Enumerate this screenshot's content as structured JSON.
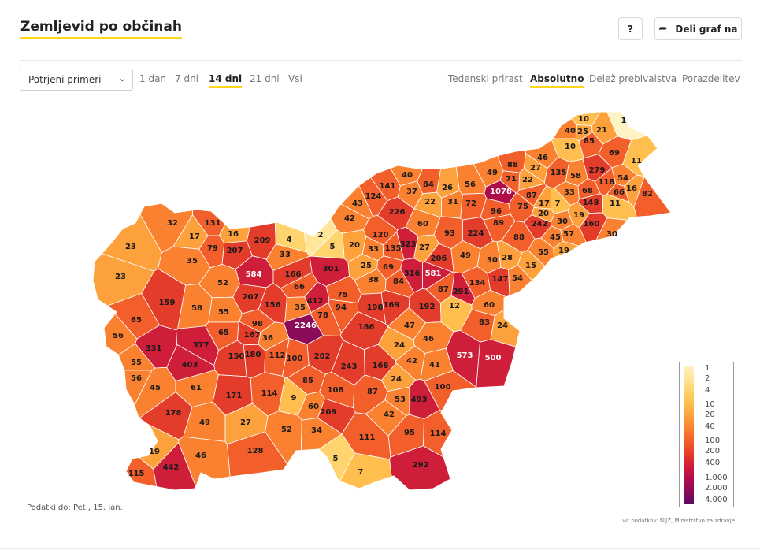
{
  "header": {
    "title": "Zemljevid po občinah",
    "help_label": "?",
    "share_label": "Deli graf na"
  },
  "controls": {
    "metric_select": "Potrjeni primeri",
    "period_tabs": [
      "1 dan",
      "7 dni",
      "14 dni",
      "21 dni",
      "Vsi"
    ],
    "period_active": "14 dni",
    "mode_tabs": [
      "Tedenski prirast",
      "Absolutno",
      "Delež prebivalstva",
      "Porazdelitev"
    ],
    "mode_active": "Absolutno"
  },
  "legend": {
    "labels": [
      "1",
      "2",
      "4",
      "10",
      "20",
      "40",
      "100",
      "200",
      "400",
      "1.000",
      "2.000",
      "4.000"
    ],
    "colors": [
      "#fff3c4",
      "#ffe69a",
      "#ffd36e",
      "#ffbe4d",
      "#fda13c",
      "#f9812f",
      "#f25f2a",
      "#e43c2b",
      "#cf1e3a",
      "#b10c4a",
      "#8c0a5a",
      "#5c0a66"
    ]
  },
  "footer": {
    "updated": "Podatki do: Pet., 15. jan.",
    "source": "vir podatkov: NIJZ, Ministrstvo za zdravje"
  },
  "map": {
    "values": [
      10,
      1,
      40,
      25,
      21,
      10,
      85,
      69,
      11,
      49,
      88,
      46,
      27,
      135,
      58,
      279,
      54,
      16,
      118,
      66,
      82,
      71,
      22,
      1078,
      87,
      33,
      68,
      17,
      7,
      148,
      11,
      40,
      84,
      37,
      141,
      26,
      56,
      124,
      43,
      22,
      31,
      72,
      96,
      75,
      20,
      19,
      226,
      42,
      60,
      93,
      224,
      89,
      242,
      30,
      160,
      30,
      131,
      32,
      16,
      17,
      209,
      4,
      2,
      120,
      323,
      27,
      88,
      45,
      57,
      23,
      79,
      207,
      33,
      5,
      20,
      33,
      135,
      206,
      49,
      30,
      28,
      55,
      19,
      35,
      584,
      166,
      301,
      25,
      69,
      316,
      581,
      15,
      54,
      147,
      23,
      52,
      66,
      38,
      84,
      87,
      134,
      159,
      207,
      156,
      412,
      75,
      198,
      169,
      192,
      291,
      12,
      60,
      58,
      55,
      35,
      94,
      78,
      83,
      24,
      65,
      56,
      98,
      2246,
      186,
      47,
      65,
      167,
      36,
      46,
      331,
      377,
      150,
      180,
      112,
      100,
      202,
      24,
      573,
      500,
      55,
      403,
      243,
      168,
      42,
      41,
      56,
      45,
      61,
      85,
      24,
      100,
      114,
      9,
      108,
      87,
      171,
      60,
      53,
      493,
      178,
      209,
      42,
      49,
      27,
      52,
      34,
      111,
      95,
      114,
      128,
      46,
      19,
      442,
      115,
      5,
      7,
      292
    ]
  }
}
